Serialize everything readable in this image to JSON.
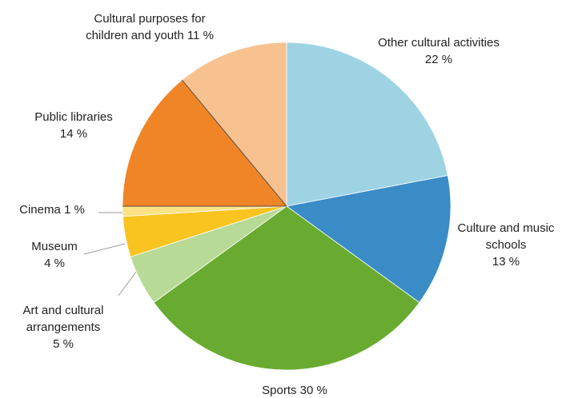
{
  "chart_data": {
    "type": "pie",
    "title": "",
    "start_angle_deg": 0,
    "direction": "clockwise",
    "slices": [
      {
        "id": "other-cultural-activities",
        "name": "Other cultural activities",
        "value": 22,
        "color": "#9ed3e3",
        "label_lines": [
          "Other cultural activities",
          "22 %"
        ]
      },
      {
        "id": "culture-and-music-schools",
        "name": "Culture and music schools",
        "value": 13,
        "color": "#3a8cc6",
        "label_lines": [
          "Culture and music",
          "schools",
          "13 %"
        ]
      },
      {
        "id": "sports",
        "name": "Sports",
        "value": 30,
        "color": "#69ab30",
        "label_lines": [
          "Sports 30 %"
        ]
      },
      {
        "id": "art-and-cultural-arrangements",
        "name": "Art and cultural arrangements",
        "value": 5,
        "color": "#b8da97",
        "label_lines": [
          "Art and cultural",
          "arrangements",
          "5 %"
        ]
      },
      {
        "id": "museum",
        "name": "Museum",
        "value": 4,
        "color": "#f9c41f",
        "label_lines": [
          "Museum",
          "4 %"
        ]
      },
      {
        "id": "cinema",
        "name": "Cinema",
        "value": 1,
        "color": "#fbe285",
        "label_lines": [
          "Cinema 1 %"
        ]
      },
      {
        "id": "public-libraries",
        "name": "Public libraries",
        "value": 14,
        "color": "#f08527",
        "label_lines": [
          "Public libraries",
          "14 %"
        ]
      },
      {
        "id": "cultural-purposes-children-youth",
        "name": "Cultural purposes for children and youth",
        "value": 11,
        "color": "#f7c190",
        "label_lines": [
          "Cultural purposes for",
          "children and youth 11 %"
        ]
      }
    ]
  }
}
